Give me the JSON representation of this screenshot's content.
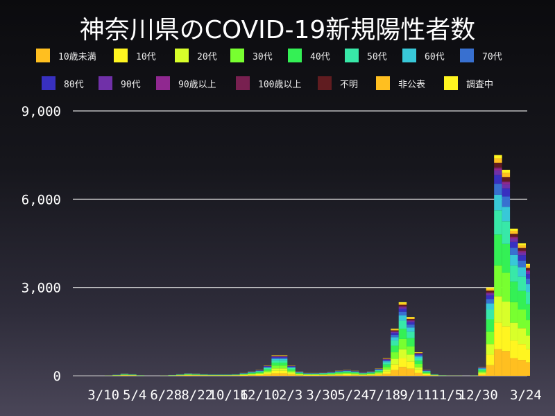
{
  "chart_data": {
    "type": "bar",
    "stacked": true,
    "title": "神奈川県のCOVID-19新規陽性者数",
    "xlabel": "",
    "ylabel": "",
    "ylim": [
      0,
      9000
    ],
    "yticks": [
      "0",
      "3,000",
      "6,000",
      "9,000"
    ],
    "ytick_values": [
      0,
      3000,
      6000,
      9000
    ],
    "xticks": [
      "3/10",
      "5/4",
      "6/28",
      "8/22",
      "10/16",
      "12/10",
      "2/3",
      "3/30",
      "5/24",
      "7/18",
      "9/11",
      "11/5",
      "12/30",
      "3/24"
    ],
    "xtick_dates": [
      "2020-03-10",
      "2020-05-04",
      "2020-06-28",
      "2020-08-22",
      "2020-10-16",
      "2020-12-10",
      "2021-02-03",
      "2021-03-30",
      "2021-05-24",
      "2021-07-18",
      "2021-09-11",
      "2021-11-05",
      "2021-12-30",
      "2022-03-24"
    ],
    "grid": true,
    "legend_position": "top",
    "dates": [
      "2020-01-16",
      "2020-01-30",
      "2020-02-13",
      "2020-02-27",
      "2020-03-12",
      "2020-03-26",
      "2020-04-09",
      "2020-04-23",
      "2020-05-07",
      "2020-05-21",
      "2020-06-04",
      "2020-06-18",
      "2020-07-02",
      "2020-07-16",
      "2020-07-30",
      "2020-08-13",
      "2020-08-27",
      "2020-09-10",
      "2020-09-24",
      "2020-10-08",
      "2020-10-22",
      "2020-11-05",
      "2020-11-19",
      "2020-12-03",
      "2020-12-17",
      "2020-12-31",
      "2021-01-14",
      "2021-01-28",
      "2021-02-11",
      "2021-02-25",
      "2021-03-11",
      "2021-03-25",
      "2021-04-08",
      "2021-04-22",
      "2021-05-06",
      "2021-05-20",
      "2021-06-03",
      "2021-06-17",
      "2021-07-01",
      "2021-07-15",
      "2021-07-29",
      "2021-08-12",
      "2021-08-26",
      "2021-09-09",
      "2021-09-23",
      "2021-10-07",
      "2021-10-21",
      "2021-11-04",
      "2021-11-18",
      "2021-12-02",
      "2021-12-16",
      "2021-12-30",
      "2022-01-13",
      "2022-01-27",
      "2022-02-10",
      "2022-02-24",
      "2022-03-10",
      "2022-03-24"
    ],
    "totals": [
      0,
      0,
      2,
      5,
      10,
      40,
      80,
      60,
      20,
      5,
      5,
      10,
      30,
      60,
      90,
      80,
      60,
      50,
      50,
      50,
      60,
      100,
      150,
      200,
      350,
      700,
      700,
      350,
      150,
      100,
      100,
      110,
      130,
      180,
      200,
      170,
      120,
      150,
      250,
      600,
      1600,
      2500,
      2000,
      800,
      200,
      60,
      20,
      10,
      10,
      8,
      15,
      300,
      3000,
      7500,
      7000,
      5000,
      4500,
      3800
    ],
    "series": [
      {
        "name": "10歳未満",
        "color": "#ffbf20",
        "share": 0.12
      },
      {
        "name": "10代",
        "color": "#fff520",
        "share": 0.12
      },
      {
        "name": "20代",
        "color": "#d8ff2a",
        "share": 0.12
      },
      {
        "name": "30代",
        "color": "#78ff30",
        "share": 0.14
      },
      {
        "name": "40代",
        "color": "#34f055",
        "share": 0.14
      },
      {
        "name": "50代",
        "color": "#38e8a8",
        "share": 0.11
      },
      {
        "name": "60代",
        "color": "#38c8d8",
        "share": 0.07
      },
      {
        "name": "70代",
        "color": "#3870d0",
        "share": 0.05
      },
      {
        "name": "80代",
        "color": "#3830c0",
        "share": 0.04
      },
      {
        "name": "90代",
        "color": "#7030a8",
        "share": 0.02
      },
      {
        "name": "90歳以上",
        "color": "#902890",
        "share": 0.01
      },
      {
        "name": "100歳以上",
        "color": "#782050",
        "share": 0.005
      },
      {
        "name": "不明",
        "color": "#601c20",
        "share": 0.02
      },
      {
        "name": "非公表",
        "color": "#ffbf20",
        "share": 0.02
      },
      {
        "name": "調査中",
        "color": "#fff520",
        "share": 0.015
      }
    ]
  }
}
